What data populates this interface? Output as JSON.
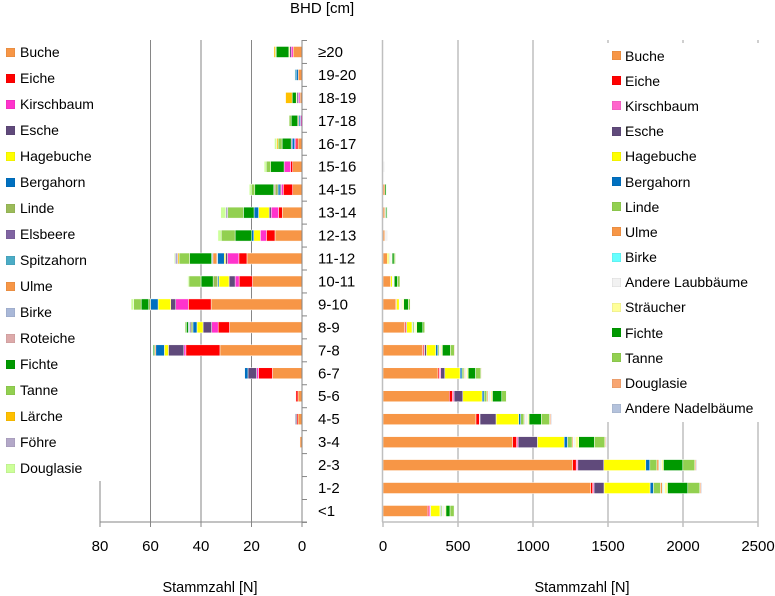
{
  "chart_data": [
    {
      "id": "left",
      "type": "bar",
      "orientation": "horizontal",
      "stacked": true,
      "x_direction": "reversed",
      "title": "",
      "ylabel": "BHD [cm]",
      "xlabel": "Stammzahl [N]",
      "xlim": [
        0,
        80
      ],
      "xticks": [
        80,
        60,
        40,
        20,
        0
      ],
      "grid": true,
      "legend": "left",
      "categories": [
        "≥20",
        "19-20",
        "18-19",
        "17-18",
        "16-17",
        "15-16",
        "14-15",
        "13-14",
        "12-13",
        "11-12",
        "10-11",
        "9-10",
        "8-9",
        "7-8",
        "6-7",
        "5-6",
        "4-5",
        "3-4",
        "2-3",
        "1-2",
        "<1"
      ],
      "series": [
        {
          "name": "Buche",
          "color": "#F79646",
          "values": [
            3.5,
            1.5,
            0.8,
            0,
            1.6,
            3.7,
            3.7,
            7.8,
            10.7,
            21.8,
            19.6,
            36,
            28.7,
            32.5,
            11.7,
            1.6,
            1.6,
            0.8,
            0,
            0,
            0
          ]
        },
        {
          "name": "Eiche",
          "color": "#FF0000",
          "values": [
            0,
            0,
            0,
            0,
            0.8,
            0.8,
            3.7,
            1.5,
            3.4,
            3.2,
            5.3,
            9,
            4.5,
            13.5,
            5.5,
            0.8,
            0.5,
            0,
            0,
            0,
            0
          ]
        },
        {
          "name": "Kirschbaum",
          "color": "#FF33CC",
          "values": [
            0.8,
            0,
            0.6,
            0.6,
            0.5,
            2.6,
            0.8,
            2.9,
            2.4,
            4.5,
            1.6,
            5,
            2.6,
            0.8,
            0.8,
            0,
            0,
            0,
            0,
            0,
            0
          ]
        },
        {
          "name": "Esche",
          "color": "#604A7B",
          "values": [
            0.6,
            0,
            0.6,
            0,
            0,
            0,
            0.5,
            0.8,
            0,
            0.8,
            2.4,
            2,
            3.4,
            6.1,
            3.4,
            0,
            0.5,
            0,
            0,
            0,
            0
          ]
        },
        {
          "name": "Hagebuche",
          "color": "#FFFF00",
          "values": [
            0.3,
            0,
            0.3,
            0,
            0,
            0,
            0,
            4.2,
            2.6,
            0.5,
            4,
            5,
            2.4,
            1.6,
            0,
            0,
            0,
            0,
            0,
            0,
            0
          ]
        },
        {
          "name": "Bergahorn",
          "color": "#0070C0",
          "values": [
            0,
            0.8,
            0,
            0.6,
            1,
            0,
            0.8,
            1.8,
            0.8,
            2.6,
            0.5,
            3,
            1.6,
            3.4,
            1.3,
            0,
            0,
            0,
            0,
            0,
            0
          ]
        },
        {
          "name": "Linde",
          "color": "#9BBB59",
          "values": [
            0,
            0,
            0,
            0,
            0,
            0,
            1.2,
            0,
            0,
            0,
            1.8,
            0.7,
            0.8,
            0,
            0,
            0,
            0,
            0,
            0,
            0,
            0
          ]
        },
        {
          "name": "Elsbeere",
          "color": "#8064A2",
          "values": [
            0,
            0,
            0,
            0,
            0.4,
            0,
            0,
            0,
            0,
            0,
            0,
            0,
            0.5,
            0,
            0,
            0,
            0,
            0,
            0,
            0,
            0
          ]
        },
        {
          "name": "Spitzahorn",
          "color": "#4BACC6",
          "values": [
            0,
            0.5,
            0,
            0,
            0,
            0,
            0,
            0,
            0,
            0.3,
            0,
            0,
            0,
            0,
            0,
            0,
            0,
            0,
            0,
            0,
            0
          ]
        },
        {
          "name": "Ulme",
          "color": "#F79646",
          "values": [
            0,
            0,
            0,
            0,
            0,
            0,
            0,
            0,
            0,
            1.6,
            0,
            0,
            0,
            0.5,
            0,
            0,
            0,
            0,
            0,
            0,
            0
          ]
        },
        {
          "name": "Birke",
          "color": "#A9B8D8",
          "values": [
            0,
            0,
            0,
            0,
            0,
            0,
            0,
            0,
            0,
            0.5,
            0,
            0,
            0.5,
            0,
            0,
            0,
            0,
            0,
            0,
            0,
            0
          ]
        },
        {
          "name": "Roteiche",
          "color": "#DDAAAA",
          "values": [
            0,
            0,
            0,
            0.5,
            0,
            0,
            0.5,
            0,
            0,
            0,
            0,
            0,
            0,
            0,
            0,
            0,
            0,
            0,
            0,
            0,
            0
          ]
        },
        {
          "name": "Fichte",
          "color": "#009900",
          "values": [
            5,
            0,
            1.6,
            2.6,
            3.6,
            5.3,
            7.5,
            4.2,
            6.6,
            8.7,
            4.8,
            3,
            0.8,
            0.5,
            0,
            0,
            0,
            0,
            0,
            0,
            0
          ]
        },
        {
          "name": "Tanne",
          "color": "#92D050",
          "values": [
            0.3,
            0,
            0,
            0.8,
            1.6,
            1.8,
            1.4,
            6.2,
            5.5,
            4.2,
            4.8,
            3,
            0.5,
            0,
            0,
            0,
            0,
            0,
            0,
            0,
            0
          ]
        },
        {
          "name": "Lärche",
          "color": "#FFC000",
          "values": [
            0.6,
            0,
            2.6,
            0,
            0.6,
            0,
            0,
            0,
            0,
            0.5,
            0,
            0,
            0,
            0,
            0,
            0,
            0,
            0,
            0,
            0,
            0
          ]
        },
        {
          "name": "Föhre",
          "color": "#B3A8C8",
          "values": [
            0,
            0,
            0,
            0,
            0,
            0,
            0,
            0.8,
            0,
            1,
            0,
            0,
            0,
            0,
            0,
            0,
            0,
            0,
            0,
            0,
            0
          ]
        },
        {
          "name": "Douglasie",
          "color": "#CCFF99",
          "values": [
            0,
            0,
            0,
            0,
            0.8,
            0.8,
            0.8,
            2,
            1.3,
            0.4,
            0.5,
            1,
            0,
            0,
            0,
            0,
            0,
            0,
            0,
            0,
            0
          ]
        }
      ]
    },
    {
      "id": "right",
      "type": "bar",
      "orientation": "horizontal",
      "stacked": true,
      "x_direction": "normal",
      "title": "",
      "ylabel": "BHD [cm]",
      "xlabel": "Stammzahl [N]",
      "xlim": [
        0,
        2500
      ],
      "xticks": [
        0,
        500,
        1000,
        1500,
        2000,
        2500
      ],
      "grid": true,
      "legend": "top-right",
      "categories": [
        "≥20",
        "19-20",
        "18-19",
        "17-18",
        "16-17",
        "15-16",
        "14-15",
        "13-14",
        "12-13",
        "11-12",
        "10-11",
        "9-10",
        "8-9",
        "7-8",
        "6-7",
        "5-6",
        "4-5",
        "3-4",
        "2-3",
        "1-2",
        "<1"
      ],
      "series": [
        {
          "name": "Buche",
          "color": "#F79646",
          "values": [
            0,
            0,
            0,
            0,
            0,
            0,
            13,
            12,
            12,
            29,
            51,
            86,
            144,
            264,
            367,
            442,
            620,
            864,
            1264,
            1385,
            296
          ]
        },
        {
          "name": "Eiche",
          "color": "#FF0000",
          "values": [
            0,
            0,
            0,
            0,
            0,
            0,
            0,
            0,
            0,
            0,
            0,
            4,
            9,
            9,
            9,
            22,
            22,
            27,
            24,
            13,
            9
          ]
        },
        {
          "name": "Kirschbaum",
          "color": "#FF66CC",
          "values": [
            0,
            0,
            0,
            0,
            0,
            0,
            0,
            0,
            0,
            0,
            0,
            0,
            0,
            4,
            9,
            10,
            5,
            10,
            11,
            9,
            9
          ]
        },
        {
          "name": "Esche",
          "color": "#604A7B",
          "values": [
            0,
            0,
            0,
            0,
            0,
            0,
            0,
            0,
            0,
            0,
            0,
            0,
            5,
            13,
            27,
            58,
            107,
            129,
            173,
            67,
            4
          ]
        },
        {
          "name": "Hagebuche",
          "color": "#FFFF00",
          "values": [
            0,
            0,
            0,
            0,
            0,
            0,
            0,
            0,
            0,
            9,
            11,
            18,
            36,
            62,
            102,
            129,
            151,
            178,
            280,
            307,
            62
          ]
        },
        {
          "name": "Bergahorn",
          "color": "#0070C0",
          "values": [
            0,
            0,
            0,
            0,
            0,
            0,
            0,
            0,
            0,
            4,
            0,
            4,
            4,
            13,
            13,
            13,
            13,
            22,
            27,
            22,
            4
          ]
        },
        {
          "name": "Linde",
          "color": "#92D050",
          "values": [
            0,
            0,
            0,
            0,
            0,
            0,
            0,
            0,
            0,
            5,
            0,
            4,
            9,
            9,
            13,
            18,
            22,
            31,
            47,
            47,
            9
          ]
        },
        {
          "name": "Ulme",
          "color": "#F79646",
          "values": [
            0,
            0,
            0,
            0,
            0,
            0,
            0,
            0,
            0,
            0,
            0,
            0,
            0,
            0,
            5,
            8,
            6,
            8,
            13,
            13,
            0
          ]
        },
        {
          "name": "Birke",
          "color": "#66FFFF",
          "values": [
            0,
            0,
            0,
            0,
            0,
            0,
            0,
            0,
            0,
            0,
            0,
            0,
            0,
            0,
            0,
            4,
            4,
            4,
            5,
            5,
            0
          ]
        },
        {
          "name": "Andere Laubbäume",
          "color": "#F2F2F2",
          "values": [
            2,
            2,
            2,
            1,
            3,
            12,
            0,
            5,
            20,
            10,
            9,
            13,
            9,
            13,
            13,
            14,
            14,
            10,
            13,
            9,
            18
          ]
        },
        {
          "name": "Sträucher",
          "color": "#FFFF99",
          "values": [
            0,
            0,
            0,
            0,
            0,
            0,
            0,
            0,
            0,
            4,
            4,
            9,
            9,
            9,
            10,
            12,
            10,
            22,
            13,
            20,
            9
          ]
        },
        {
          "name": "Fichte",
          "color": "#009900",
          "values": [
            0,
            0,
            0,
            0,
            0,
            0,
            8,
            8,
            0,
            13,
            22,
            31,
            40,
            53,
            49,
            62,
            82,
            104,
            129,
            135,
            27
          ]
        },
        {
          "name": "Tanne",
          "color": "#92D050",
          "values": [
            0,
            0,
            0,
            0,
            0,
            0,
            0,
            4,
            0,
            9,
            16,
            13,
            13,
            27,
            36,
            30,
            55,
            70,
            80,
            80,
            27
          ]
        },
        {
          "name": "Douglasie",
          "color": "#F8A672",
          "values": [
            0,
            0,
            0,
            0,
            0,
            0,
            0,
            0,
            0,
            0,
            0,
            0,
            0,
            4,
            4,
            4,
            8,
            6,
            8,
            8,
            0
          ]
        },
        {
          "name": "Andere Nadelbäume",
          "color": "#B4C2DC",
          "values": [
            0,
            0,
            0,
            0,
            0,
            0,
            0,
            0,
            0,
            0,
            0,
            0,
            0,
            0,
            3,
            3,
            5,
            5,
            6,
            6,
            0
          ]
        }
      ]
    }
  ],
  "styles": {
    "left_axis_color": "#868686",
    "right_axis_color": "#BFBFBF",
    "segment_separator_color": "#FFFFFF"
  }
}
